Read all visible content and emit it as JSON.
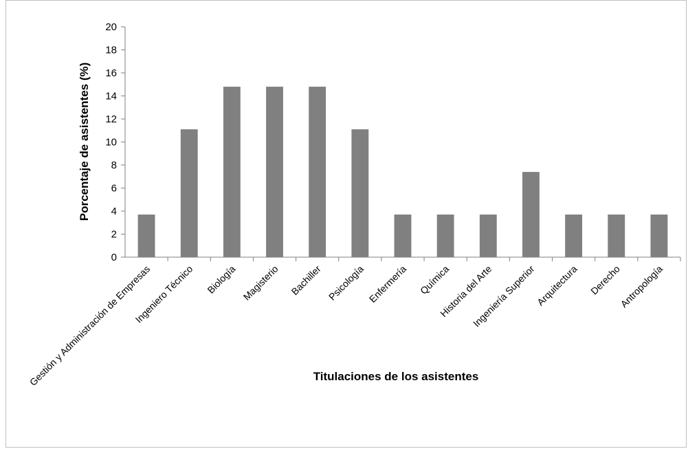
{
  "chart_data": {
    "type": "bar",
    "title": "",
    "xlabel": "Titulaciones de los asistentes",
    "ylabel": "Porcentaje de asistentes (%)",
    "ylim": [
      0,
      20
    ],
    "yticks": [
      0,
      2,
      4,
      6,
      8,
      10,
      12,
      14,
      16,
      18,
      20
    ],
    "grid": false,
    "legend": "none",
    "bar_color": "#808080",
    "categories": [
      "Gestión y Administración de Empresas",
      "Ingeniero Técnico",
      "Biología",
      "Magisterio",
      "Bachiller",
      "Psicología",
      "Enfermería",
      "Química",
      "Historia del Arte",
      "Ingeniería Superior",
      "Arquitectura",
      "Derecho",
      "Antropología"
    ],
    "values": [
      3.7,
      11.1,
      14.8,
      14.8,
      14.8,
      11.1,
      3.7,
      3.7,
      3.7,
      7.4,
      3.7,
      3.7,
      3.7
    ]
  }
}
